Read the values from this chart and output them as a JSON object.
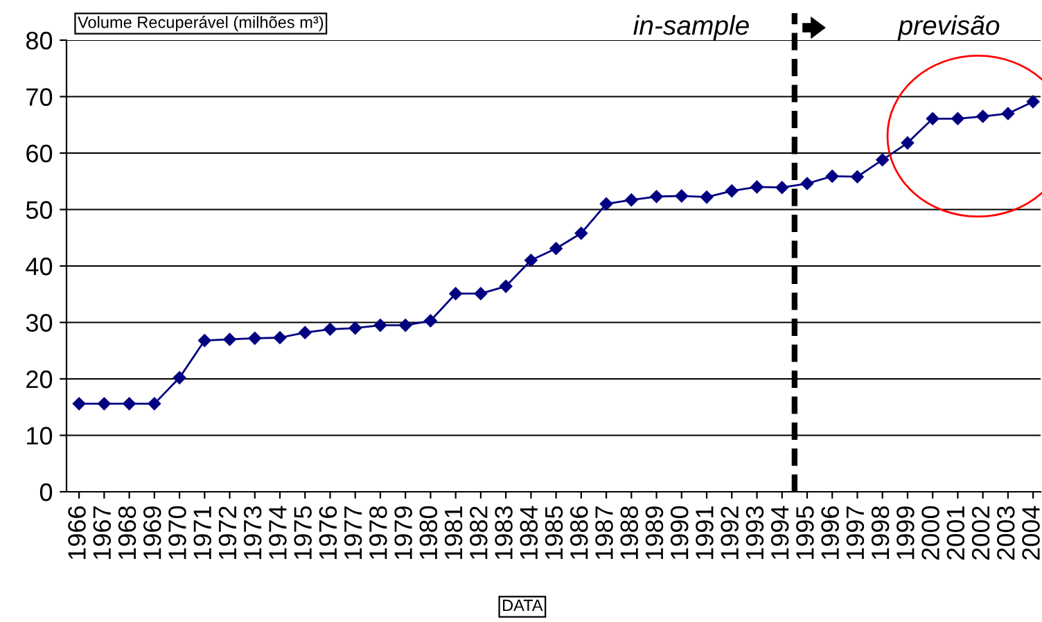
{
  "chart_data": {
    "type": "line",
    "ylabel": "Volume Recuperável (milhões m³)",
    "xlabel": "DATA",
    "x": [
      1966,
      1967,
      1968,
      1969,
      1970,
      1971,
      1972,
      1973,
      1974,
      1975,
      1976,
      1977,
      1978,
      1979,
      1980,
      1981,
      1982,
      1983,
      1984,
      1985,
      1986,
      1987,
      1988,
      1989,
      1990,
      1991,
      1992,
      1993,
      1994,
      1995,
      1996,
      1997,
      1998,
      1999,
      2000,
      2001,
      2002,
      2003,
      2004
    ],
    "series": [
      {
        "color": "#000080",
        "values": [
          15.6,
          15.6,
          15.6,
          15.6,
          20.2,
          26.8,
          27.0,
          27.2,
          27.3,
          28.2,
          28.8,
          29.0,
          29.5,
          29.5,
          30.3,
          35.1,
          35.1,
          36.4,
          41.0,
          43.1,
          45.8,
          51.0,
          51.7,
          52.3,
          52.4,
          52.2,
          53.3,
          54.0,
          53.9,
          54.6,
          55.9,
          55.8,
          58.8,
          61.8,
          66.1,
          66.1,
          66.5,
          67.0,
          69.1
        ]
      }
    ],
    "xlim": [
      1965.5,
      2004.3
    ],
    "xticks": [
      1966,
      1967,
      1968,
      1969,
      1970,
      1971,
      1972,
      1973,
      1974,
      1975,
      1976,
      1977,
      1978,
      1979,
      1980,
      1981,
      1982,
      1983,
      1984,
      1985,
      1986,
      1987,
      1988,
      1989,
      1990,
      1991,
      1992,
      1993,
      1994,
      1995,
      1996,
      1997,
      1998,
      1999,
      2000,
      2001,
      2002,
      2003,
      2004
    ],
    "ylim": [
      0,
      80
    ],
    "yticks": [
      0,
      10,
      20,
      30,
      40,
      50,
      60,
      70,
      80
    ],
    "grid": "y",
    "marker": "diamond",
    "line_style": "solid",
    "ref_lines": [
      {
        "axis": "x",
        "value": 1994.5,
        "color": "#000000",
        "line_style": "dashed"
      }
    ],
    "annotations": [
      "in-sample",
      "previsão"
    ]
  }
}
